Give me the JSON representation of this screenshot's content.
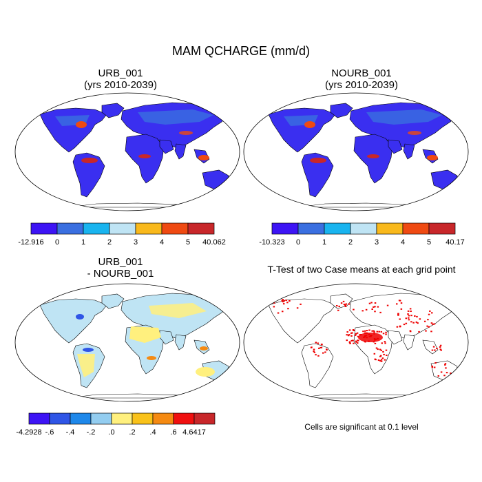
{
  "title": "MAM QCHARGE (mm/d)",
  "panels": [
    {
      "id": "urb",
      "title_line1": "URB_001",
      "title_line2": "(yrs 2010-2039)"
    },
    {
      "id": "nourb",
      "title_line1": "NOURB_001",
      "title_line2": "(yrs 2010-2039)"
    },
    {
      "id": "diff",
      "title_line1": "URB_001",
      "title_line2": "- NOURB_001"
    },
    {
      "id": "ttest",
      "title_line1": "T-Test of two Case means at each grid point"
    }
  ],
  "colorbars": [
    {
      "colors": [
        "#3d14f5",
        "#3a6fe0",
        "#19b4ef",
        "#bfe4f4",
        "#f9b91c",
        "#ef4a12",
        "#c8272a"
      ],
      "labels": [
        "-12.916",
        "0",
        "1",
        "2",
        "3",
        "4",
        "5",
        "40.062"
      ]
    },
    {
      "colors": [
        "#3d14f5",
        "#3a6fe0",
        "#19b4ef",
        "#bfe4f4",
        "#f9b91c",
        "#ef4a12",
        "#c8272a"
      ],
      "labels": [
        "-10.323",
        "0",
        "1",
        "2",
        "3",
        "4",
        "5",
        "40.17"
      ]
    },
    {
      "colors": [
        "#3d14f5",
        "#2f55e6",
        "#1e88ea",
        "#93cdf0",
        "#fff07e",
        "#f9c21a",
        "#f58a12",
        "#f01010",
        "#c8272a"
      ],
      "labels": [
        "-4.2928",
        "-.6",
        "-.4",
        "-.2",
        ".0",
        ".2",
        ".4",
        ".6",
        "4.6417"
      ]
    }
  ],
  "note": "Cells are significant at 0.1 level",
  "map_colors": {
    "urb_base": "#3a2ff0",
    "urb_mid": "#3a6fe0",
    "urb_high": "#c8272a",
    "urb_warm": "#ef4a12",
    "diff_base": "#bfe4f4",
    "diff_yellow": "#fff07e",
    "diff_orange": "#f58a12",
    "diff_blue": "#2f55e6",
    "sig": "#ee0000"
  }
}
